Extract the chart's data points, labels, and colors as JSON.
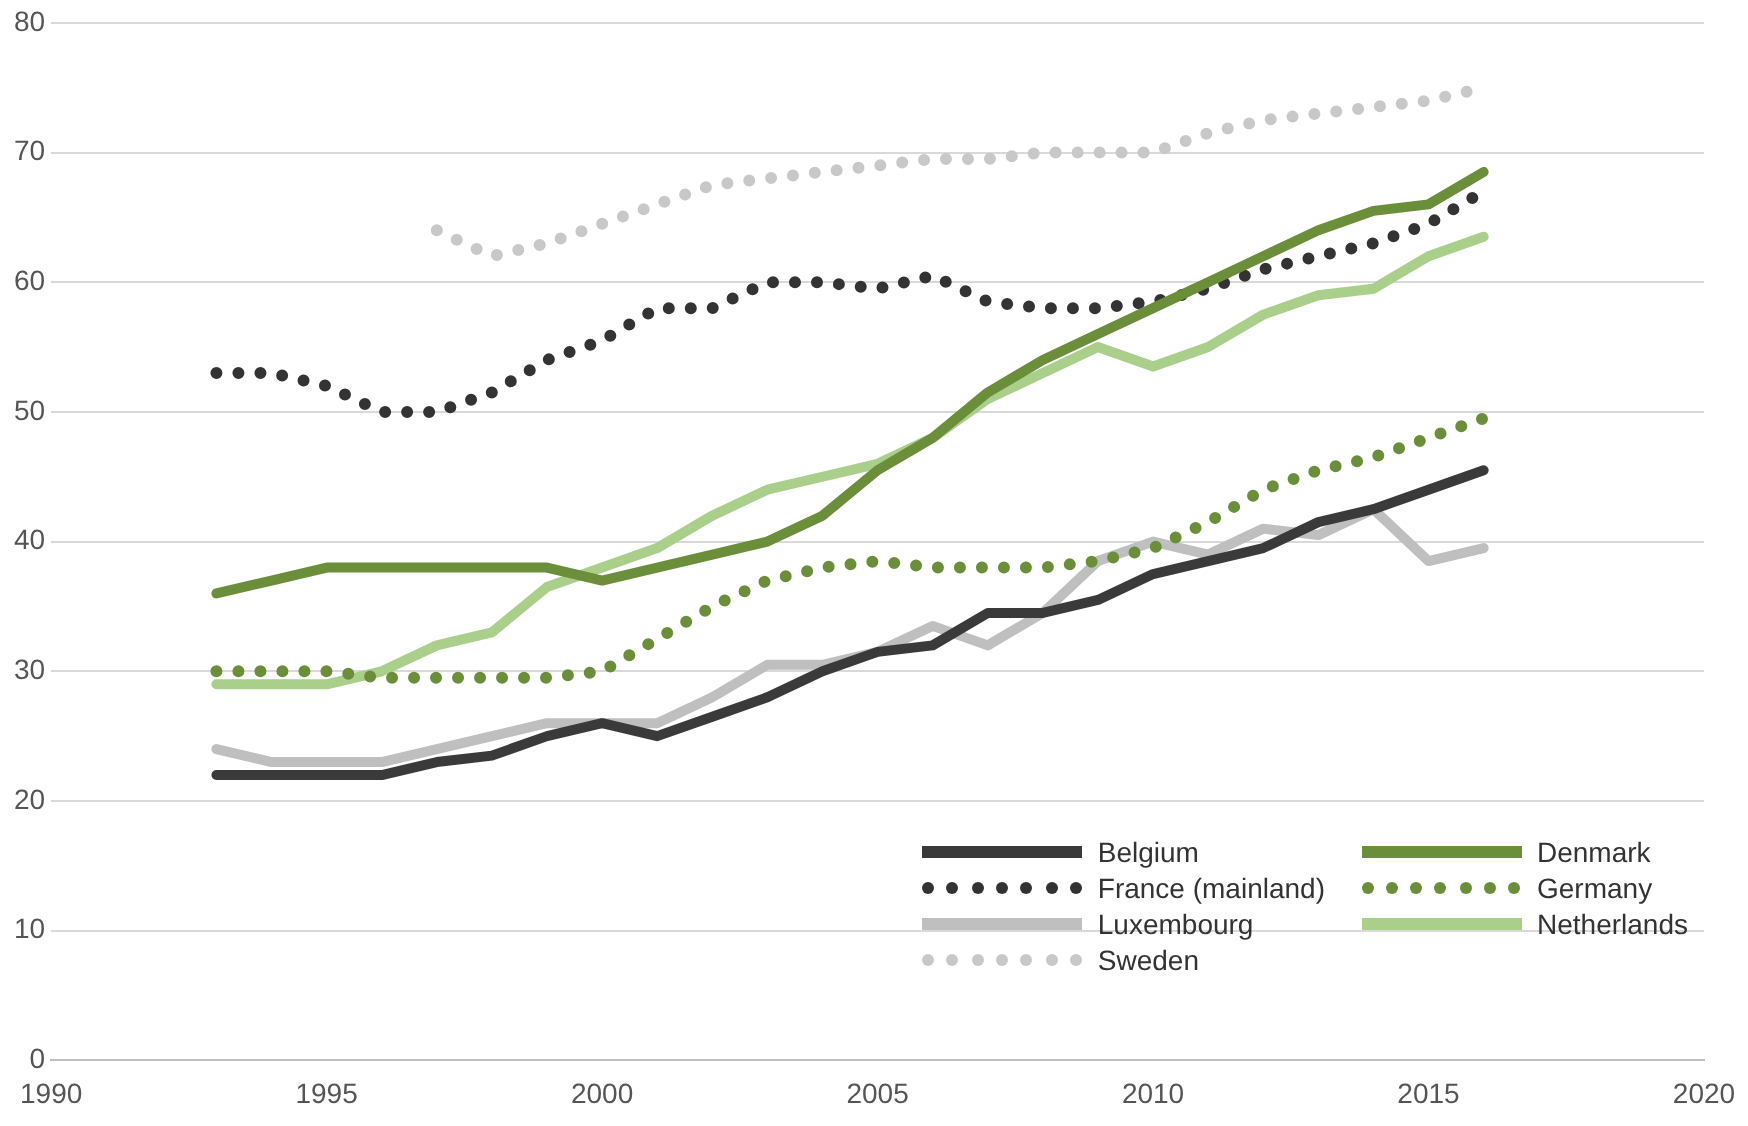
{
  "chart_data": {
    "type": "line",
    "x": [
      1993,
      1994,
      1995,
      1996,
      1997,
      1998,
      1999,
      2000,
      2001,
      2002,
      2003,
      2004,
      2005,
      2006,
      2007,
      2008,
      2009,
      2010,
      2011,
      2012,
      2013,
      2014,
      2015,
      2016
    ],
    "series": [
      {
        "name": "Belgium",
        "color": "#3a3a3a",
        "line_style": "solid",
        "values": [
          22,
          22,
          22,
          22,
          23,
          23.5,
          25,
          26,
          25,
          26.5,
          28,
          30,
          31.5,
          32,
          34.5,
          34.5,
          35.5,
          37.5,
          38.5,
          39.5,
          41.5,
          42.5,
          44,
          45.5
        ]
      },
      {
        "name": "Denmark",
        "color": "#6b8e3a",
        "line_style": "solid",
        "values": [
          36,
          37,
          38,
          38,
          38,
          38,
          38,
          37,
          38,
          39,
          40,
          42,
          45.5,
          48,
          51.5,
          54,
          56,
          58,
          60,
          62,
          64,
          65.5,
          66,
          68.5
        ]
      },
      {
        "name": "France (mainland)",
        "color": "#333333",
        "line_style": "dotted",
        "values": [
          53,
          53,
          52,
          50,
          50,
          51.5,
          54,
          55.5,
          58,
          58,
          60,
          60,
          59.5,
          60.5,
          58.5,
          58,
          58,
          58.5,
          59.5,
          61,
          62,
          63,
          64.5,
          67
        ]
      },
      {
        "name": "Germany",
        "color": "#6b8e3a",
        "line_style": "dotted",
        "values": [
          30,
          30,
          30,
          29.5,
          29.5,
          29.5,
          29.5,
          30,
          32.5,
          35,
          37,
          38,
          38.5,
          38,
          38,
          38,
          38.5,
          39.5,
          41.5,
          44,
          45.5,
          46.5,
          48,
          49.5
        ]
      },
      {
        "name": "Luxembourg",
        "color": "#bfbfbf",
        "line_style": "solid",
        "values": [
          24,
          23,
          23,
          23,
          24,
          25,
          26,
          26,
          26,
          28,
          30.5,
          30.5,
          31.5,
          33.5,
          32,
          34.5,
          38.5,
          40,
          39,
          41,
          40.5,
          42.5,
          38.5,
          39.5
        ]
      },
      {
        "name": "Netherlands",
        "color": "#a9cf8a",
        "line_style": "solid",
        "values": [
          29,
          29,
          29,
          30,
          32,
          33,
          36.5,
          38,
          39.5,
          42,
          44,
          45,
          46,
          48,
          51,
          53,
          55,
          53.5,
          55,
          57.5,
          59,
          59.5,
          62,
          63.5
        ]
      },
      {
        "name": "Sweden",
        "color": "#c8c8c8",
        "line_style": "dotted",
        "values": [
          null,
          null,
          null,
          null,
          64,
          62,
          63,
          64.5,
          66,
          67.5,
          68,
          68.5,
          69,
          69.5,
          69.5,
          70,
          70,
          70,
          71.5,
          72.5,
          73,
          73.5,
          74,
          75
        ]
      }
    ],
    "xlim": [
      1990,
      2020
    ],
    "xticks": [
      1990,
      1995,
      2000,
      2005,
      2010,
      2015,
      2020
    ],
    "ylim": [
      0,
      80
    ],
    "yticks": [
      0,
      10,
      20,
      30,
      40,
      50,
      60,
      70,
      80
    ],
    "grid": "y",
    "legend": "bottom right"
  }
}
